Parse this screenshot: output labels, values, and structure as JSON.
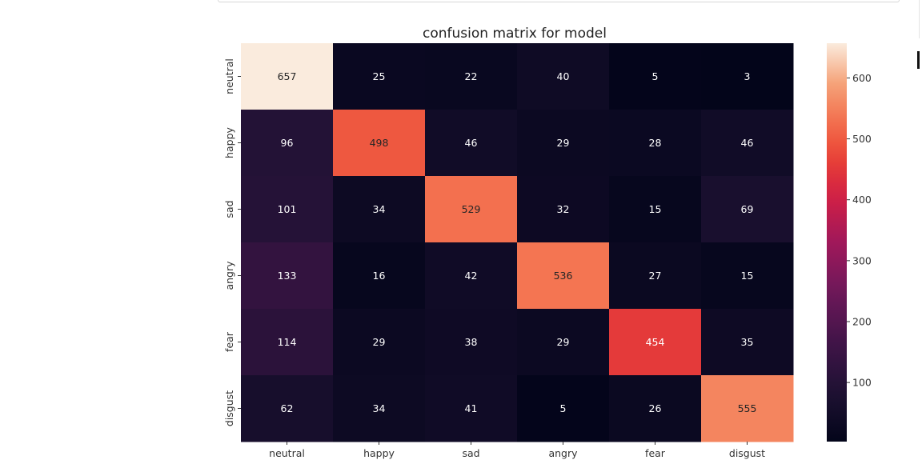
{
  "chart_data": {
    "type": "heatmap",
    "title": "confusion matrix for model",
    "xlabel": "",
    "ylabel": "",
    "x_categories": [
      "neutral",
      "happy",
      "sad",
      "angry",
      "fear",
      "disgust"
    ],
    "y_categories": [
      "neutral",
      "happy",
      "sad",
      "angry",
      "fear",
      "disgust"
    ],
    "values": [
      [
        657,
        25,
        22,
        40,
        5,
        3
      ],
      [
        96,
        498,
        46,
        29,
        28,
        46
      ],
      [
        101,
        34,
        529,
        32,
        15,
        69
      ],
      [
        133,
        16,
        42,
        536,
        27,
        15
      ],
      [
        114,
        29,
        38,
        29,
        454,
        35
      ],
      [
        62,
        34,
        41,
        5,
        26,
        555
      ]
    ],
    "colorbar": {
      "colormap": "rocket",
      "vmin": 3,
      "vmax": 657,
      "ticks": [
        100,
        200,
        300,
        400,
        500,
        600
      ]
    }
  }
}
